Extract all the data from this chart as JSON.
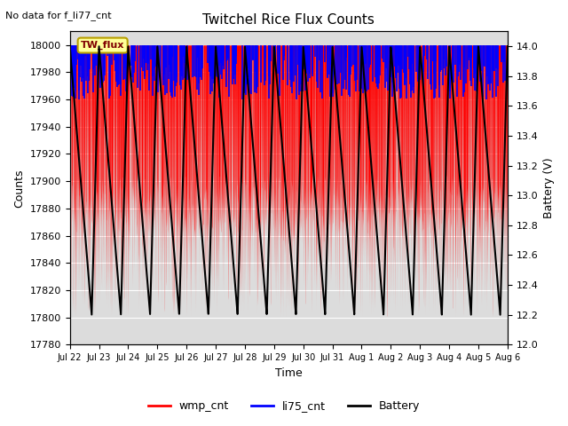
{
  "title": "Twitchel Rice Flux Counts",
  "no_data_text": "No data for f_li77_cnt",
  "xlabel": "Time",
  "ylabel_left": "Counts",
  "ylabel_right": "Battery (V)",
  "ylim_left": [
    17780,
    18010
  ],
  "ylim_right": [
    12.0,
    14.1
  ],
  "yticks_left": [
    17780,
    17800,
    17820,
    17840,
    17860,
    17880,
    17900,
    17920,
    17940,
    17960,
    17980,
    18000
  ],
  "yticks_right": [
    12.0,
    12.2,
    12.4,
    12.6,
    12.8,
    13.0,
    13.2,
    13.4,
    13.6,
    13.8,
    14.0
  ],
  "xtick_labels": [
    "Jul 22",
    "Jul 23",
    "Jul 24",
    "Jul 25",
    "Jul 26",
    "Jul 27",
    "Jul 28",
    "Jul 29",
    "Jul 30",
    "Jul 31",
    "Aug 1",
    "Aug 2",
    "Aug 3",
    "Aug 4",
    "Aug 5",
    "Aug 6"
  ],
  "wmp_color": "#ff0000",
  "li75_color": "#0000ff",
  "battery_color": "#000000",
  "background_color": "#dcdcdc",
  "legend_items": [
    "wmp_cnt",
    "li75_cnt",
    "Battery"
  ],
  "tw_flux_label": "TW_flux",
  "tw_flux_bg": "#ffff99",
  "tw_flux_border": "#b8a000",
  "n_days": 15,
  "battery_min_v": 12.2,
  "battery_max_v": 14.0
}
